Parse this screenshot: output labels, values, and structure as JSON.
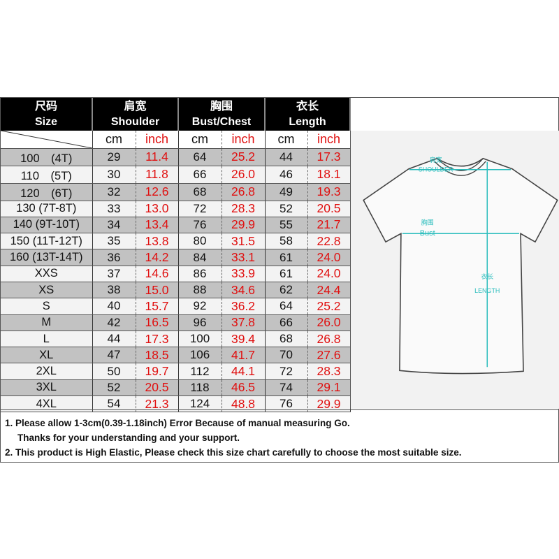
{
  "header": {
    "size": {
      "cn": "尺码",
      "en": "Size"
    },
    "shoulder": {
      "cn": "肩宽",
      "en": "Shoulder"
    },
    "bust": {
      "cn": "胸围",
      "en": "Bust/Chest"
    },
    "length": {
      "cn": "衣长",
      "en": "Length"
    },
    "units": [
      "cm",
      "inch",
      "cm",
      "inch",
      "cm",
      "inch"
    ]
  },
  "rows": [
    [
      "100　(4T)",
      "29",
      "11.4",
      "64",
      "25.2",
      "44",
      "17.3"
    ],
    [
      "110　(5T)",
      "30",
      "11.8",
      "66",
      "26.0",
      "46",
      "18.1"
    ],
    [
      "120　(6T)",
      "32",
      "12.6",
      "68",
      "26.8",
      "49",
      "19.3"
    ],
    [
      "130 (7T-8T)",
      "33",
      "13.0",
      "72",
      "28.3",
      "52",
      "20.5"
    ],
    [
      "140 (9T-10T)",
      "34",
      "13.4",
      "76",
      "29.9",
      "55",
      "21.7"
    ],
    [
      "150 (11T-12T)",
      "35",
      "13.8",
      "80",
      "31.5",
      "58",
      "22.8"
    ],
    [
      "160 (13T-14T)",
      "36",
      "14.2",
      "84",
      "33.1",
      "61",
      "24.0"
    ],
    [
      "XXS",
      "37",
      "14.6",
      "86",
      "33.9",
      "61",
      "24.0"
    ],
    [
      "XS",
      "38",
      "15.0",
      "88",
      "34.6",
      "62",
      "24.4"
    ],
    [
      "S",
      "40",
      "15.7",
      "92",
      "36.2",
      "64",
      "25.2"
    ],
    [
      "M",
      "42",
      "16.5",
      "96",
      "37.8",
      "66",
      "26.0"
    ],
    [
      "L",
      "44",
      "17.3",
      "100",
      "39.4",
      "68",
      "26.8"
    ],
    [
      "XL",
      "47",
      "18.5",
      "106",
      "41.7",
      "70",
      "27.6"
    ],
    [
      "2XL",
      "50",
      "19.7",
      "112",
      "44.1",
      "72",
      "28.3"
    ],
    [
      "3XL",
      "52",
      "20.5",
      "118",
      "46.5",
      "74",
      "29.1"
    ],
    [
      "4XL",
      "54",
      "21.3",
      "124",
      "48.8",
      "76",
      "29.9"
    ]
  ],
  "diagram": {
    "shoulder_cn": "肩宽",
    "shoulder_en": "SHOULDER",
    "bust_cn": "胸围",
    "bust_en": "Bust",
    "length_cn": "衣长",
    "length_en": "LENGTH",
    "accent": "#2bbdbd"
  },
  "notes": {
    "line1": "1. Please allow 1-3cm(0.39-1.18inch) Error Because of manual measuring Go.",
    "line1b": "Thanks for your understanding  and your support.",
    "line2": "2. This product is High Elastic, Please check this size chart carefully to choose the most suitable size."
  },
  "colors": {
    "header_bg": "#000000",
    "inch_text": "#e01010",
    "row_gray": "#c2c2c2",
    "row_light": "#f3f3f3"
  }
}
